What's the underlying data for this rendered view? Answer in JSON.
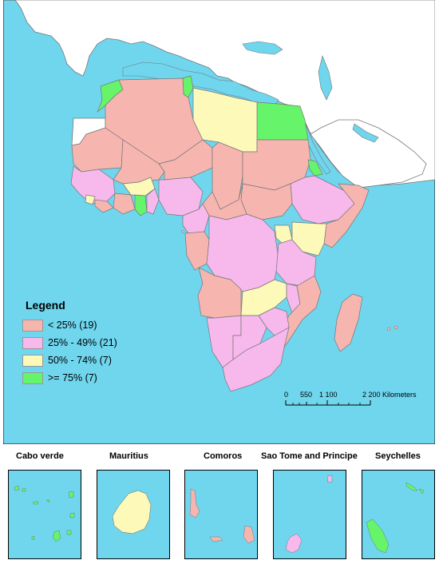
{
  "colors": {
    "ocean": "#6fd6ee",
    "non_africa": "#ffffff",
    "border": "#777777",
    "cat1": "#f7b5b0",
    "cat2": "#f7b8ec",
    "cat3": "#fcf9b9",
    "cat4": "#66f46a"
  },
  "legend": {
    "title": "Legend",
    "items": [
      {
        "label": "< 25% (19)",
        "color_key": "cat1"
      },
      {
        "label": "25% - 49% (21)",
        "color_key": "cat2"
      },
      {
        "label": "50% - 74% (7)",
        "color_key": "cat3"
      },
      {
        "label": ">= 75% (7)",
        "color_key": "cat4"
      }
    ]
  },
  "scale_bar": {
    "ticks": [
      "0",
      "550",
      "1 100",
      "2 200"
    ],
    "unit": "Kilometers"
  },
  "insets": [
    {
      "title": "Cabo verde"
    },
    {
      "title": "Mauritius"
    },
    {
      "title": "Comoros"
    },
    {
      "title": "Sao Tome and Principe"
    },
    {
      "title": "Seychelles"
    }
  ]
}
